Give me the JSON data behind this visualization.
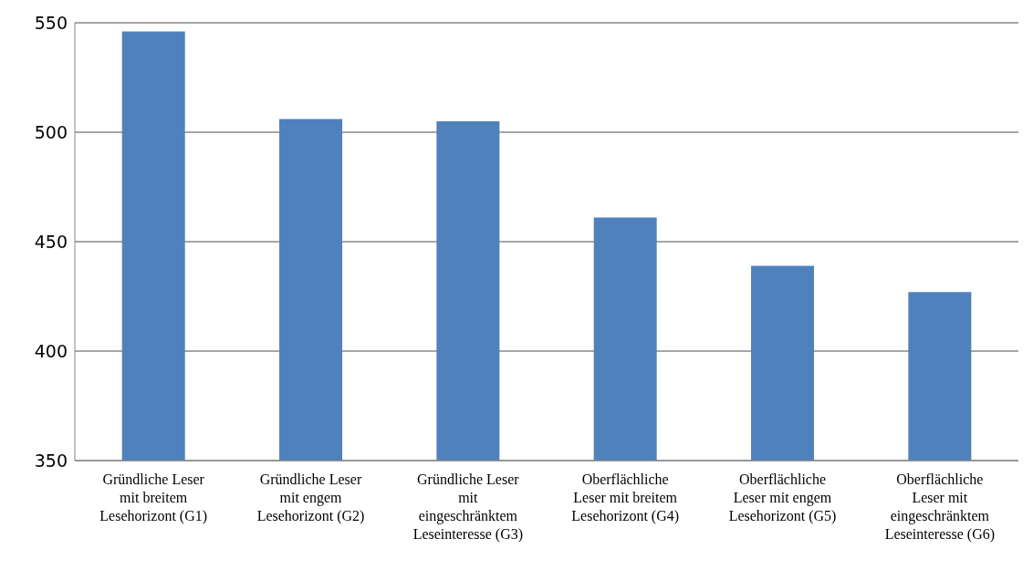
{
  "chart_data": {
    "type": "bar",
    "categories": [
      "Gründliche Leser mit breitem Lesehorizont (G1)",
      "Gründliche Leser mit engem Lesehorizont (G2)",
      "Gründliche Leser mit eingeschränktem Leseinteresse (G3)",
      "Oberflächliche Leser mit breitem Lesehorizont (G4)",
      "Oberflächliche Leser mit engem Lesehorizont (G5)",
      "Oberflächliche Leser mit eingeschränktem Leseinteresse (G6)"
    ],
    "values": [
      546,
      506,
      505,
      461,
      439,
      427
    ],
    "color": "#4f81bd",
    "ylim": [
      350,
      550
    ],
    "yticks": [
      350,
      400,
      450,
      500,
      550
    ],
    "grid": "y"
  }
}
